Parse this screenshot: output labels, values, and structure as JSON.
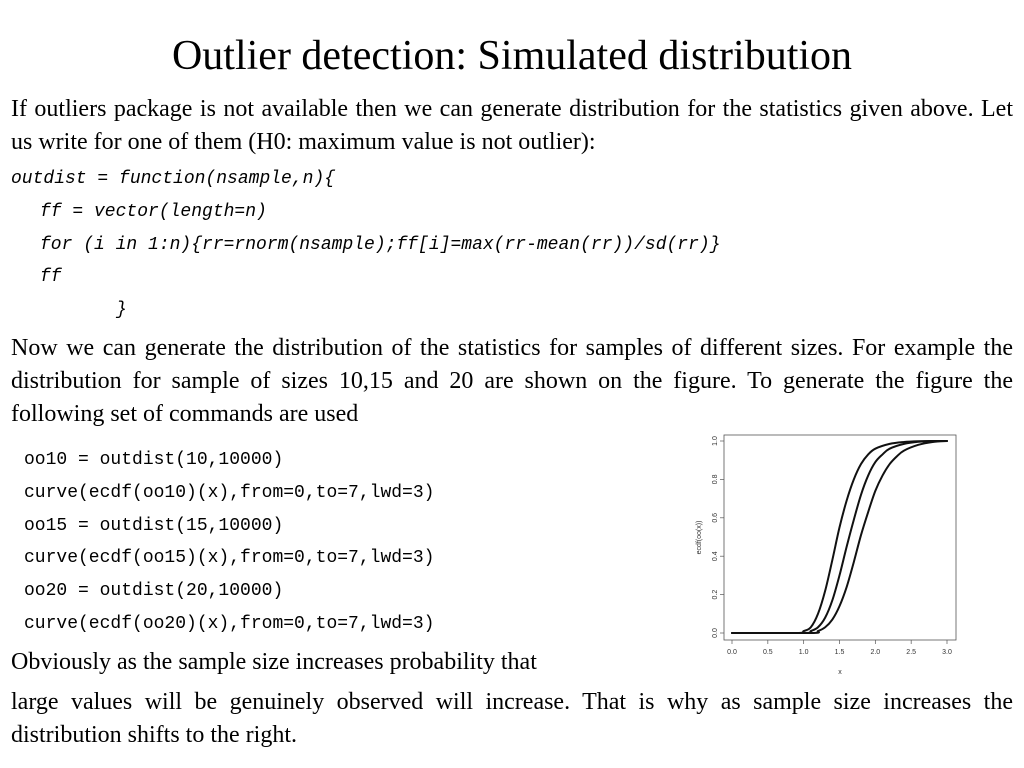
{
  "slide": {
    "title": "Outlier detection: Simulated distribution",
    "intro": "If outliers package is not available then we can generate distribution for the statistics given above. Let us write for one of them (H0: maximum value is not outlier):",
    "function_code": [
      "outdist = function(nsample,n){",
      "ff = vector(length=n)",
      "for (i in 1:n){rr=rnorm(nsample);ff[i]=max(rr-mean(rr))/sd(rr)}",
      "ff",
      "}"
    ],
    "middle_text": "Now we can generate the distribution of the statistics for samples of different sizes. For example the distribution for sample of sizes 10,15 and 20 are shown on the figure. To generate the figure the following set of commands are used",
    "commands": [
      "oo10 = outdist(10,10000)",
      "curve(ecdf(oo10)(x),from=0,to=7,lwd=3)",
      "oo15 = outdist(15,10000)",
      "curve(ecdf(oo15)(x),from=0,to=7,lwd=3)",
      "oo20 = outdist(20,10000)",
      "curve(ecdf(oo20)(x),from=0,to=7,lwd=3)"
    ],
    "conclusion_line1": "Obviously as the sample size increases probability that",
    "conclusion_line2": "large values will be genuinely observed will increase. That is why as sample size increases the distribution shifts to the right."
  },
  "chart_data": {
    "type": "line",
    "xlabel": "x",
    "ylabel": "ecdf(oo(x))",
    "xlim": [
      0.0,
      3.0
    ],
    "ylim": [
      0.0,
      1.0
    ],
    "xticks": [
      "0.0",
      "0.5",
      "1.0",
      "1.5",
      "2.0",
      "2.5",
      "3.0"
    ],
    "yticks": [
      "0.0",
      "0.2",
      "0.4",
      "0.6",
      "0.8",
      "1.0"
    ],
    "grid": false,
    "line_color": "#111111",
    "series": [
      {
        "x": [
          0.0,
          0.9,
          1.0,
          1.1,
          1.2,
          1.3,
          1.4,
          1.5,
          1.6,
          1.7,
          1.8,
          1.9,
          2.0,
          2.2,
          2.4,
          2.6,
          2.8,
          3.0
        ],
        "values": [
          0.0,
          0.0,
          0.01,
          0.03,
          0.1,
          0.22,
          0.38,
          0.55,
          0.69,
          0.8,
          0.88,
          0.93,
          0.96,
          0.985,
          0.995,
          0.999,
          1.0,
          1.0
        ]
      },
      {
        "x": [
          0.0,
          1.0,
          1.1,
          1.2,
          1.3,
          1.4,
          1.5,
          1.6,
          1.7,
          1.8,
          1.9,
          2.0,
          2.1,
          2.2,
          2.4,
          2.6,
          2.8,
          3.0
        ],
        "values": [
          0.0,
          0.0,
          0.01,
          0.03,
          0.08,
          0.17,
          0.3,
          0.45,
          0.59,
          0.72,
          0.82,
          0.89,
          0.93,
          0.96,
          0.985,
          0.996,
          0.999,
          1.0
        ]
      },
      {
        "x": [
          0.0,
          1.1,
          1.2,
          1.3,
          1.4,
          1.5,
          1.6,
          1.7,
          1.8,
          1.9,
          2.0,
          2.1,
          2.2,
          2.3,
          2.4,
          2.6,
          2.8,
          3.0
        ],
        "values": [
          0.0,
          0.0,
          0.01,
          0.03,
          0.07,
          0.14,
          0.24,
          0.37,
          0.51,
          0.63,
          0.74,
          0.82,
          0.88,
          0.92,
          0.95,
          0.98,
          0.995,
          1.0
        ]
      }
    ]
  }
}
